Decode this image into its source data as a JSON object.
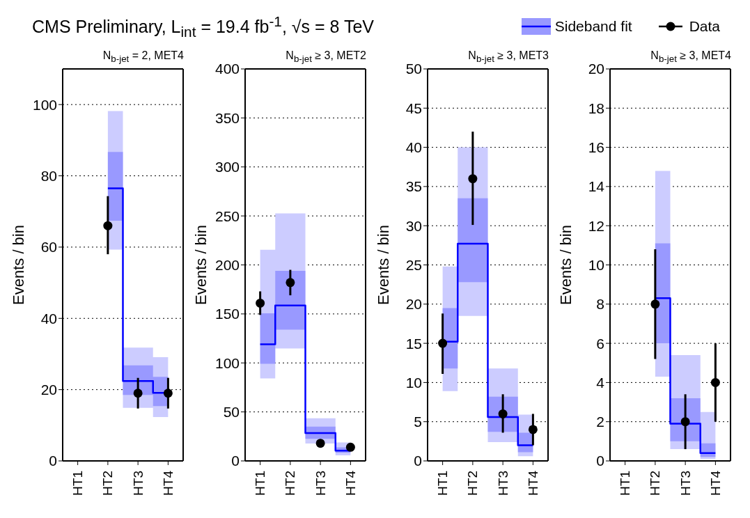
{
  "chart_data": [
    {
      "type": "step",
      "title": "N$_{b-jet}$ = 2, MET4",
      "ylabel": "Events / bin",
      "annotations": [
        "CMS Preliminary, L$_{int}$ = 19.4 fb$^{-1}$, √s = 8 TeV"
      ],
      "legend": "top right",
      "grid": "y",
      "categories": [
        "HT1",
        "HT2",
        "HT3",
        "HT4"
      ],
      "ylim": [
        0,
        110
      ],
      "yticks": [
        0,
        20,
        40,
        60,
        80,
        100
      ],
      "series": [
        {
          "color": "#ccccff",
          "values": [
            null,
            null,
            null,
            null
          ],
          "lower": [
            null,
            59.3,
            14.9,
            12.3
          ],
          "upper": [
            null,
            98.2,
            31.8,
            29.1
          ]
        },
        {
          "color": "#9999ff",
          "values": [
            null,
            null,
            null,
            null
          ],
          "lower": [
            null,
            67.4,
            18.5,
            15.4
          ],
          "upper": [
            null,
            86.7,
            26.8,
            23.6
          ]
        },
        {
          "type": "step",
          "name": "Sideband fit",
          "color": "#0000ff",
          "values": [
            null,
            76.5,
            22.4,
            19.1
          ]
        },
        {
          "type": "scatter",
          "name": "Data",
          "color": "#000000",
          "marker": "circle",
          "values": [
            null,
            66,
            19,
            19
          ],
          "errors": [
            null,
            [
              58,
              74.3
            ],
            [
              14.7,
              23.3
            ],
            [
              14.7,
              23.3
            ]
          ]
        }
      ]
    },
    {
      "type": "step",
      "title": "N$_{b-jet}$ ≥ 3, MET2",
      "ylabel": "Events / bin",
      "grid": "y",
      "categories": [
        "HT1",
        "HT2",
        "HT3",
        "HT4"
      ],
      "ylim": [
        0,
        400
      ],
      "yticks": [
        0,
        50,
        100,
        150,
        200,
        250,
        300,
        350,
        400
      ],
      "series": [
        {
          "color": "#ccccff",
          "values": [
            null,
            null,
            null,
            null
          ],
          "lower": [
            84.2,
            114.8,
            17.7,
            5.6
          ],
          "upper": [
            215.4,
            252.6,
            43.5,
            18.8
          ]
        },
        {
          "color": "#9999ff",
          "values": [
            null,
            null,
            null,
            null
          ],
          "lower": [
            99.1,
            133.9,
            22.5,
            8.4
          ],
          "upper": [
            150.7,
            194,
            35,
            13.8
          ]
        },
        {
          "color": "#0000ff",
          "values": [
            119,
            158.6,
            28.4,
            10.4
          ]
        },
        {
          "type": "scatter",
          "color": "#000000",
          "marker": "circle",
          "values": [
            161,
            182,
            18,
            14
          ],
          "errors": [
            [
              149,
              173
            ],
            [
              169,
              195
            ],
            null,
            [
              10,
              18
            ]
          ]
        }
      ]
    },
    {
      "type": "step",
      "title": "N$_{b-jet}$ ≥ 3, MET3",
      "ylabel": "Events / bin",
      "grid": "y",
      "categories": [
        "HT1",
        "HT2",
        "HT3",
        "HT4"
      ],
      "ylim": [
        0,
        50
      ],
      "yticks": [
        0,
        5,
        10,
        15,
        20,
        25,
        30,
        35,
        40,
        45,
        50
      ],
      "series": [
        {
          "color": "#ccccff",
          "values": [
            null,
            null,
            null,
            null
          ],
          "lower": [
            8.9,
            18.5,
            2.4,
            0.6
          ],
          "upper": [
            24.8,
            40,
            11.8,
            5.9
          ]
        },
        {
          "color": "#9999ff",
          "values": [
            null,
            null,
            null,
            null
          ],
          "lower": [
            11.8,
            22.8,
            3.7,
            1.1
          ],
          "upper": [
            19.5,
            33.5,
            8.2,
            3.6
          ]
        },
        {
          "color": "#0000ff",
          "values": [
            15.2,
            27.7,
            5.6,
            2
          ]
        },
        {
          "type": "scatter",
          "color": "#000000",
          "marker": "circle",
          "values": [
            15,
            36,
            6,
            4
          ],
          "errors": [
            [
              11.1,
              18.8
            ],
            [
              30.1,
              42
            ],
            [
              3.6,
              8.5
            ],
            [
              2,
              6
            ]
          ]
        }
      ]
    },
    {
      "type": "step",
      "title": "N$_{b-jet}$ ≥ 3, MET4",
      "ylabel": "Events / bin",
      "grid": "y",
      "categories": [
        "HT1",
        "HT2",
        "HT3",
        "HT4"
      ],
      "ylim": [
        0,
        20
      ],
      "yticks": [
        0,
        2,
        4,
        6,
        8,
        10,
        12,
        14,
        16,
        18,
        20
      ],
      "series": [
        {
          "color": "#ccccff",
          "values": [
            null,
            null,
            null,
            null
          ],
          "lower": [
            null,
            4.3,
            0.6,
            0.1
          ],
          "upper": [
            null,
            14.8,
            5.4,
            2.5
          ]
        },
        {
          "color": "#9999ff",
          "values": [
            null,
            null,
            null,
            null
          ],
          "lower": [
            null,
            6,
            1,
            0.2
          ],
          "upper": [
            null,
            11.1,
            3.2,
            0.9
          ]
        },
        {
          "color": "#0000ff",
          "values": [
            null,
            8.3,
            1.9,
            0.4
          ]
        },
        {
          "type": "scatter",
          "color": "#000000",
          "marker": "circle",
          "values": [
            null,
            8,
            2,
            4
          ],
          "errors": [
            null,
            [
              5.2,
              10.8
            ],
            [
              0.6,
              3.4
            ],
            [
              2,
              6
            ]
          ]
        }
      ]
    }
  ]
}
